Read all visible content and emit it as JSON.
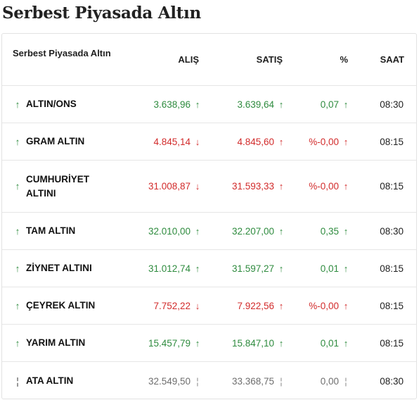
{
  "page_title": "Serbest Piyasada Altın",
  "table": {
    "headers": {
      "name": "Serbest Piyasada Altın",
      "alis": "ALIŞ",
      "satis": "SATIŞ",
      "pct": "%",
      "saat": "SAAT"
    },
    "rows": [
      {
        "trend": "↑",
        "name": "ALTIN/ONS",
        "alis": "3.638,96",
        "alis_arrow": "↑",
        "satis": "3.639,64",
        "satis_arrow": "↑",
        "pct": "0,07",
        "pct_arrow": "↑",
        "saat": "08:30",
        "alis_dir": "up",
        "satis_dir": "up",
        "pct_dir": "up",
        "trend_dir": "up"
      },
      {
        "trend": "↑",
        "name": "GRAM ALTIN",
        "alis": "4.845,14",
        "alis_arrow": "↓",
        "satis": "4.845,60",
        "satis_arrow": "↑",
        "pct": "%-0,00",
        "pct_arrow": "↑",
        "saat": "08:15",
        "alis_dir": "down",
        "satis_dir": "down",
        "pct_dir": "down",
        "trend_dir": "up"
      },
      {
        "trend": "↑",
        "name": "CUMHURİYET ALTINI",
        "alis": "31.008,87",
        "alis_arrow": "↓",
        "satis": "31.593,33",
        "satis_arrow": "↑",
        "pct": "%-0,00",
        "pct_arrow": "↑",
        "saat": "08:15",
        "alis_dir": "down",
        "satis_dir": "down",
        "pct_dir": "down",
        "trend_dir": "up"
      },
      {
        "trend": "↑",
        "name": "TAM ALTIN",
        "alis": "32.010,00",
        "alis_arrow": "↑",
        "satis": "32.207,00",
        "satis_arrow": "↑",
        "pct": "0,35",
        "pct_arrow": "↑",
        "saat": "08:30",
        "alis_dir": "up",
        "satis_dir": "up",
        "pct_dir": "up",
        "trend_dir": "up"
      },
      {
        "trend": "↑",
        "name": "ZİYNET ALTINI",
        "alis": "31.012,74",
        "alis_arrow": "↑",
        "satis": "31.597,27",
        "satis_arrow": "↑",
        "pct": "0,01",
        "pct_arrow": "↑",
        "saat": "08:15",
        "alis_dir": "up",
        "satis_dir": "up",
        "pct_dir": "up",
        "trend_dir": "up"
      },
      {
        "trend": "↑",
        "name": "ÇEYREK ALTIN",
        "alis": "7.752,22",
        "alis_arrow": "↓",
        "satis": "7.922,56",
        "satis_arrow": "↑",
        "pct": "%-0,00",
        "pct_arrow": "↑",
        "saat": "08:15",
        "alis_dir": "down",
        "satis_dir": "down",
        "pct_dir": "down",
        "trend_dir": "up"
      },
      {
        "trend": "↑",
        "name": "YARIM ALTIN",
        "alis": "15.457,79",
        "alis_arrow": "↑",
        "satis": "15.847,10",
        "satis_arrow": "↑",
        "pct": "0,01",
        "pct_arrow": "↑",
        "saat": "08:15",
        "alis_dir": "up",
        "satis_dir": "up",
        "pct_dir": "up",
        "trend_dir": "up"
      },
      {
        "trend": "¦",
        "name": "ATA ALTIN",
        "alis": "32.549,50",
        "alis_arrow": "¦",
        "satis": "33.368,75",
        "satis_arrow": "¦",
        "pct": "0,00",
        "pct_arrow": "¦",
        "saat": "08:30",
        "alis_dir": "flat",
        "satis_dir": "flat",
        "pct_dir": "flat",
        "trend_dir": "flat"
      }
    ]
  },
  "colors": {
    "up": "#2e8b3e",
    "down": "#d22b2b",
    "flat": "#8a8a8a"
  }
}
